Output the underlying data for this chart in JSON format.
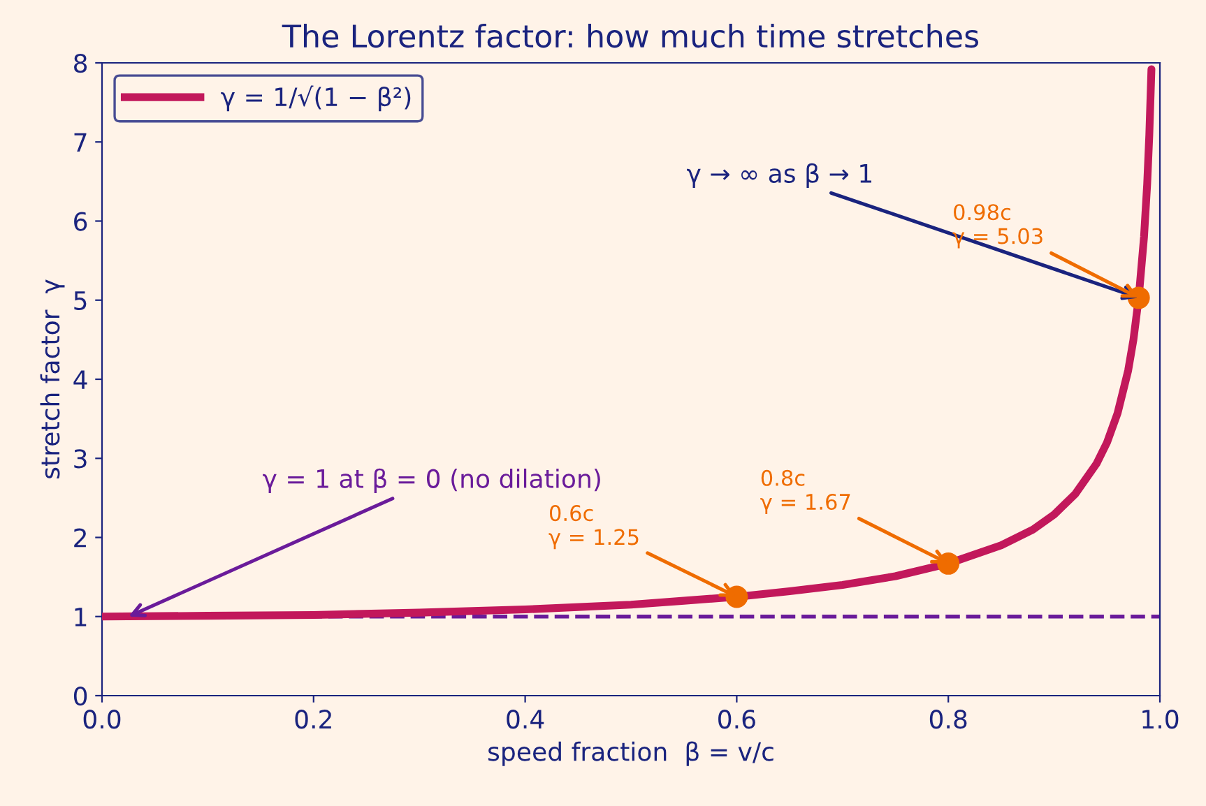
{
  "chart_data": {
    "type": "line",
    "title": "The Lorentz factor: how much time stretches",
    "xlabel": "speed fraction  β = v/c",
    "ylabel": "stretch factor  γ",
    "x": [
      0,
      0.1,
      0.2,
      0.3,
      0.4,
      0.5,
      0.55,
      0.6,
      0.65,
      0.7,
      0.75,
      0.8,
      0.85,
      0.88,
      0.9,
      0.92,
      0.94,
      0.95,
      0.96,
      0.97,
      0.975,
      0.98,
      0.985,
      0.988,
      0.99,
      0.992
    ],
    "series": [
      {
        "name": "γ = 1/√(1 − β²)",
        "color": "#c2185b",
        "marker": "none",
        "line_style": "solid",
        "values": [
          1.0,
          1.01,
          1.02,
          1.05,
          1.09,
          1.15,
          1.2,
          1.25,
          1.32,
          1.4,
          1.51,
          1.67,
          1.9,
          2.1,
          2.29,
          2.55,
          2.93,
          3.2,
          3.57,
          4.11,
          4.5,
          5.03,
          5.8,
          6.47,
          7.09,
          7.92
        ]
      },
      {
        "type": "scatter",
        "color": "#ef6c00",
        "marker": "circle",
        "x": [
          0.6,
          0.8,
          0.98
        ],
        "values": [
          1.25,
          1.67,
          5.03
        ]
      }
    ],
    "ref_lines": [
      {
        "axis": "y",
        "value": 1,
        "color": "#6a1b9a",
        "line_style": "dashed"
      }
    ],
    "annotations": [
      {
        "text": "γ → ∞ as β → 1",
        "x": 0.98,
        "y": 5.03
      },
      {
        "text": "0.98c\nγ = 5.03",
        "x": 0.98,
        "y": 5.03
      },
      {
        "text": "0.8c\nγ = 1.67",
        "x": 0.8,
        "y": 1.67
      },
      {
        "text": "0.6c\nγ = 1.25",
        "x": 0.6,
        "y": 1.25
      },
      {
        "text": "γ = 1 at β = 0 (no dilation)",
        "x": 0.025,
        "y": 1
      }
    ],
    "xlim": [
      0,
      1
    ],
    "ylim": [
      0,
      8
    ],
    "xticks": [
      {
        "value": 0,
        "label": "0.0"
      },
      {
        "value": 0.2,
        "label": "0.2"
      },
      {
        "value": 0.4,
        "label": "0.4"
      },
      {
        "value": 0.6,
        "label": "0.6"
      },
      {
        "value": 0.8,
        "label": "0.8"
      },
      {
        "value": 1,
        "label": "1.0"
      }
    ],
    "yticks": [
      0,
      1,
      2,
      3,
      4,
      5,
      6,
      7,
      8
    ],
    "grid": false,
    "legend": "top left"
  }
}
